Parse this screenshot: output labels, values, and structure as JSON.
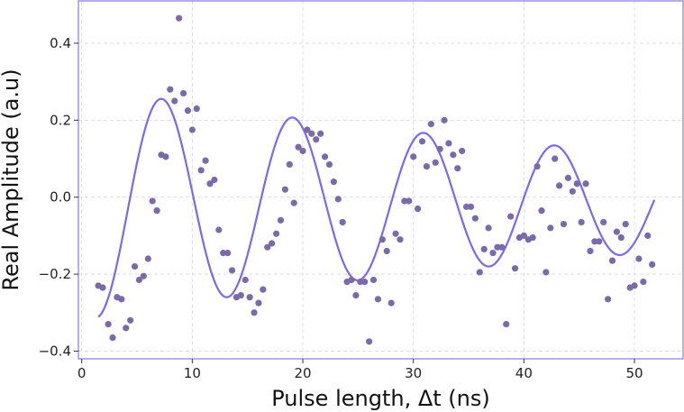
{
  "chart_data": {
    "type": "scatter",
    "xlabel": "Pulse length, Δt (ns)",
    "ylabel": "Real Amplitude (a.u)",
    "xlim": [
      -0.3,
      54.4
    ],
    "ylim": [
      -0.42,
      0.51
    ],
    "x_ticks": [
      0,
      10,
      20,
      30,
      40,
      50
    ],
    "y_ticks": [
      0.4,
      0.2,
      0.0,
      -0.2,
      -0.4
    ],
    "x_tick_labels": [
      "0",
      "10",
      "20",
      "30",
      "40",
      "50"
    ],
    "y_tick_labels": [
      "0.4",
      "0.2",
      "0.0",
      "−0.2",
      "−0.4"
    ],
    "grid": true,
    "colors": {
      "points": "#7a6aa8",
      "fit": "#7b68ee",
      "frame": "#8878e0"
    },
    "series": [
      {
        "kind": "scatter",
        "points": [
          [
            1.5,
            -0.23
          ],
          [
            1.9,
            -0.235
          ],
          [
            2.4,
            -0.33
          ],
          [
            2.8,
            -0.365
          ],
          [
            3.2,
            -0.26
          ],
          [
            3.6,
            -0.265
          ],
          [
            4.0,
            -0.34
          ],
          [
            4.4,
            -0.32
          ],
          [
            4.8,
            -0.18
          ],
          [
            5.2,
            -0.215
          ],
          [
            5.6,
            -0.205
          ],
          [
            6.0,
            -0.16
          ],
          [
            6.4,
            -0.01
          ],
          [
            6.8,
            -0.035
          ],
          [
            7.2,
            0.11
          ],
          [
            7.6,
            0.105
          ],
          [
            8.0,
            0.28
          ],
          [
            8.4,
            0.25
          ],
          [
            8.8,
            0.465
          ],
          [
            9.2,
            0.27
          ],
          [
            9.6,
            0.225
          ],
          [
            10.0,
            0.175
          ],
          [
            10.4,
            0.23
          ],
          [
            10.8,
            0.07
          ],
          [
            11.2,
            0.095
          ],
          [
            11.6,
            0.035
          ],
          [
            12.0,
            0.045
          ],
          [
            12.4,
            -0.085
          ],
          [
            12.8,
            -0.145
          ],
          [
            13.2,
            -0.145
          ],
          [
            13.6,
            -0.19
          ],
          [
            14.0,
            -0.26
          ],
          [
            14.4,
            -0.255
          ],
          [
            14.8,
            -0.215
          ],
          [
            15.2,
            -0.26
          ],
          [
            15.6,
            -0.3
          ],
          [
            16.0,
            -0.275
          ],
          [
            16.4,
            -0.24
          ],
          [
            16.8,
            -0.13
          ],
          [
            17.2,
            -0.12
          ],
          [
            17.6,
            -0.095
          ],
          [
            18.0,
            -0.06
          ],
          [
            18.4,
            0.02
          ],
          [
            18.8,
            0.085
          ],
          [
            19.2,
            -0.015
          ],
          [
            19.6,
            0.13
          ],
          [
            20.0,
            0.12
          ],
          [
            20.4,
            0.175
          ],
          [
            20.8,
            0.165
          ],
          [
            21.2,
            0.15
          ],
          [
            21.6,
            0.165
          ],
          [
            22.0,
            0.105
          ],
          [
            22.4,
            0.085
          ],
          [
            22.8,
            0.04
          ],
          [
            23.2,
            -0.005
          ],
          [
            23.6,
            -0.065
          ],
          [
            24.0,
            -0.22
          ],
          [
            24.4,
            -0.215
          ],
          [
            24.8,
            -0.255
          ],
          [
            25.2,
            -0.22
          ],
          [
            25.6,
            -0.22
          ],
          [
            26.0,
            -0.375
          ],
          [
            26.4,
            -0.215
          ],
          [
            26.8,
            -0.265
          ],
          [
            27.2,
            -0.11
          ],
          [
            27.6,
            -0.14
          ],
          [
            28.0,
            -0.275
          ],
          [
            28.4,
            -0.095
          ],
          [
            28.8,
            -0.11
          ],
          [
            29.2,
            -0.01
          ],
          [
            29.6,
            -0.01
          ],
          [
            30.0,
            0.105
          ],
          [
            30.4,
            -0.03
          ],
          [
            30.8,
            0.145
          ],
          [
            31.2,
            0.08
          ],
          [
            31.6,
            0.19
          ],
          [
            32.0,
            0.09
          ],
          [
            32.4,
            0.125
          ],
          [
            32.8,
            0.2
          ],
          [
            33.2,
            0.14
          ],
          [
            33.6,
            0.11
          ],
          [
            34.0,
            0.075
          ],
          [
            34.4,
            0.12
          ],
          [
            34.8,
            -0.025
          ],
          [
            35.2,
            -0.025
          ],
          [
            35.6,
            -0.055
          ],
          [
            36.0,
            -0.195
          ],
          [
            36.4,
            -0.135
          ],
          [
            36.8,
            -0.08
          ],
          [
            37.2,
            -0.145
          ],
          [
            37.6,
            -0.13
          ],
          [
            38.0,
            -0.13
          ],
          [
            38.4,
            -0.33
          ],
          [
            38.8,
            -0.05
          ],
          [
            39.2,
            -0.185
          ],
          [
            39.6,
            -0.105
          ],
          [
            40.0,
            -0.1
          ],
          [
            40.4,
            -0.11
          ],
          [
            40.8,
            -0.105
          ],
          [
            41.2,
            0.08
          ],
          [
            41.6,
            -0.035
          ],
          [
            42.0,
            -0.195
          ],
          [
            42.4,
            -0.08
          ],
          [
            42.8,
            0.1
          ],
          [
            43.2,
            0.03
          ],
          [
            43.6,
            -0.07
          ],
          [
            44.0,
            0.05
          ],
          [
            44.4,
            0.015
          ],
          [
            44.8,
            0.035
          ],
          [
            45.2,
            -0.065
          ],
          [
            45.6,
            0.035
          ],
          [
            46.0,
            -0.14
          ],
          [
            46.4,
            -0.115
          ],
          [
            46.8,
            -0.115
          ],
          [
            47.2,
            -0.065
          ],
          [
            47.6,
            -0.265
          ],
          [
            48.0,
            -0.165
          ],
          [
            48.4,
            -0.09
          ],
          [
            48.8,
            -0.105
          ],
          [
            49.2,
            -0.07
          ],
          [
            49.6,
            -0.235
          ],
          [
            50.0,
            -0.23
          ],
          [
            50.4,
            -0.16
          ],
          [
            50.8,
            -0.22
          ],
          [
            51.2,
            -0.1
          ],
          [
            51.6,
            -0.175
          ]
        ]
      },
      {
        "kind": "fit",
        "model": "offset + amplitude*exp(-t/decay)*cos(2*pi*t/period + phase)",
        "params": {
          "amplitude": 0.305,
          "offset": -0.015,
          "decay": 60,
          "period": 11.85,
          "phase": 2.44
        },
        "x_range": [
          1.5,
          51.8
        ]
      }
    ]
  }
}
